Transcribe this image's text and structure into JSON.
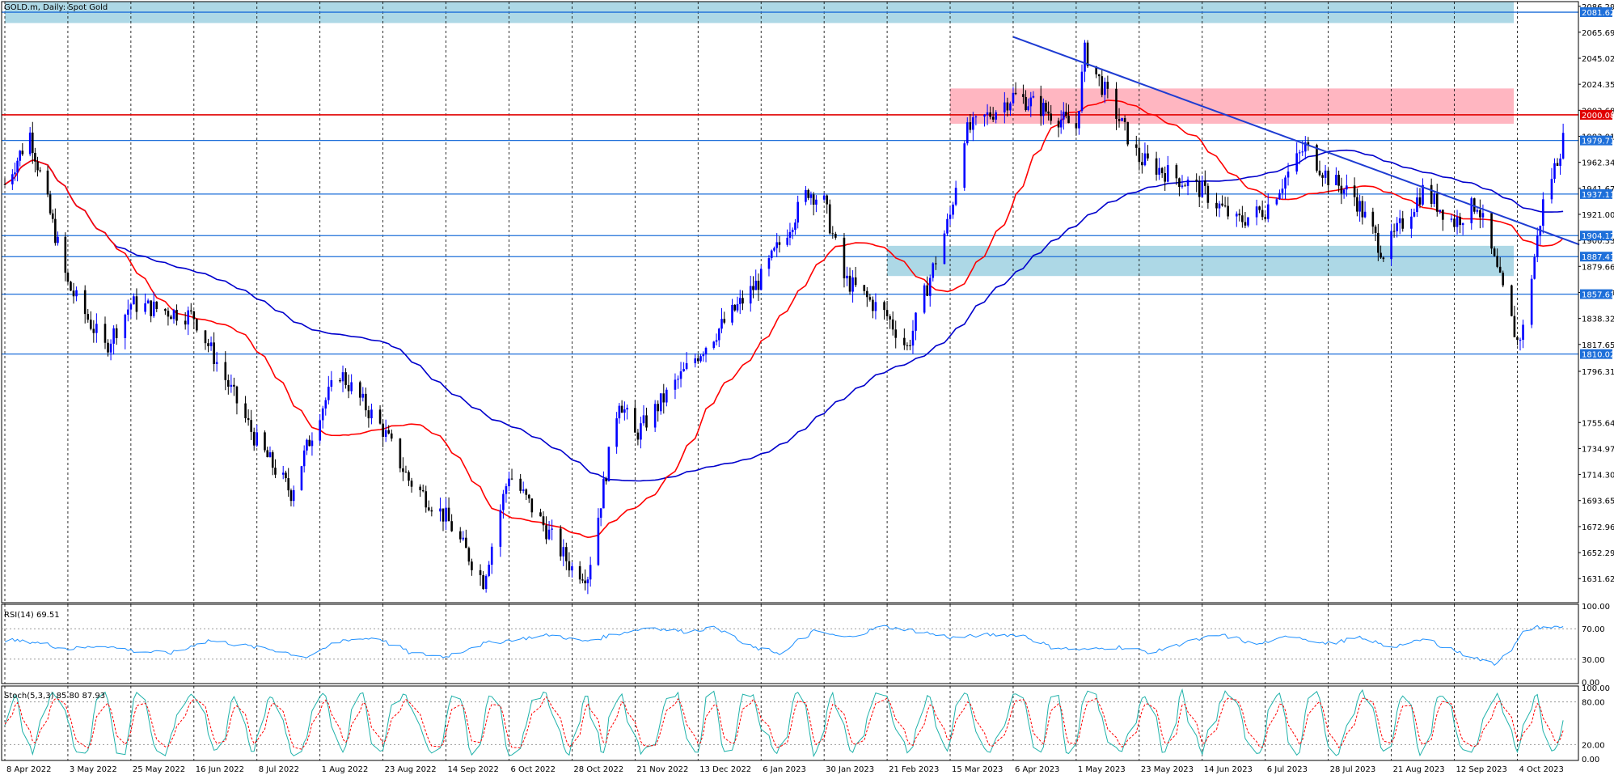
{
  "chart_data": {
    "type": "candlestick",
    "title": "GOLD.m, Daily:  Spot Gold",
    "colors": {
      "bull": "#0000ff",
      "bear": "#000000",
      "ma_fast": "#ff0000",
      "ma_slow": "#0000cc",
      "support_zone": "#add8e6",
      "resistance_zone": "#ffb6c1",
      "level_line": "#1e6fd9",
      "key_level": "#e00000",
      "trendline": "#1e3cd2",
      "rsi_line": "#1e90ff",
      "stoch_main": "#20b2aa",
      "stoch_signal": "#ff0000"
    },
    "price_axis": {
      "ylim": [
        1612.5,
        2090.0
      ],
      "ticks": [
        "2086.29",
        "2065.69",
        "2045.02",
        "2024.35",
        "2003.68",
        "1983.01",
        "1962.34",
        "1941.67",
        "1921.00",
        "1900.33",
        "1879.66",
        "1858.99",
        "1838.32",
        "1817.65",
        "1796.31",
        "1755.64",
        "1734.97",
        "1714.30",
        "1693.65",
        "1672.96",
        "1652.29",
        "1631.62"
      ]
    },
    "x_axis": {
      "labels": [
        "8 Apr 2022",
        "3 May 2022",
        "25 May 2022",
        "16 Jun 2022",
        "8 Jul 2022",
        "1 Aug 2022",
        "23 Aug 2022",
        "14 Sep 2022",
        "6 Oct 2022",
        "28 Oct 2022",
        "21 Nov 2022",
        "13 Dec 2022",
        "6 Jan 2023",
        "30 Jan 2023",
        "21 Feb 2023",
        "15 Mar 2023",
        "6 Apr 2023",
        "1 May 2023",
        "23 May 2023",
        "14 Jun 2023",
        "6 Jul 2023",
        "28 Jul 2023",
        "21 Aug 2023",
        "12 Sep 2023",
        "4 Oct 2023"
      ]
    },
    "series_anchors": [
      {
        "date": "8 Apr 2022",
        "close": 1945
      },
      {
        "date": "18 Apr 2022",
        "close": 1985
      },
      {
        "date": "3 May 2022",
        "close": 1865
      },
      {
        "date": "16 May 2022",
        "close": 1815
      },
      {
        "date": "25 May 2022",
        "close": 1850
      },
      {
        "date": "16 Jun 2022",
        "close": 1840
      },
      {
        "date": "8 Jul 2022",
        "close": 1740
      },
      {
        "date": "21 Jul 2022",
        "close": 1700
      },
      {
        "date": "1 Aug 2022",
        "close": 1765
      },
      {
        "date": "8 Aug 2022",
        "close": 1795
      },
      {
        "date": "23 Aug 2022",
        "close": 1750
      },
      {
        "date": "1 Sep 2022",
        "close": 1710
      },
      {
        "date": "14 Sep 2022",
        "close": 1680
      },
      {
        "date": "27 Sep 2022",
        "close": 1630
      },
      {
        "date": "6 Oct 2022",
        "close": 1715
      },
      {
        "date": "28 Oct 2022",
        "close": 1640
      },
      {
        "date": "3 Nov 2022",
        "close": 1635
      },
      {
        "date": "15 Nov 2022",
        "close": 1775
      },
      {
        "date": "21 Nov 2022",
        "close": 1745
      },
      {
        "date": "13 Dec 2022",
        "close": 1810
      },
      {
        "date": "6 Jan 2023",
        "close": 1870
      },
      {
        "date": "24 Jan 2023",
        "close": 1940
      },
      {
        "date": "30 Jan 2023",
        "close": 1930
      },
      {
        "date": "6 Feb 2023",
        "close": 1870
      },
      {
        "date": "21 Feb 2023",
        "close": 1840
      },
      {
        "date": "28 Feb 2023",
        "close": 1815
      },
      {
        "date": "15 Mar 2023",
        "close": 1920
      },
      {
        "date": "20 Mar 2023",
        "close": 1985
      },
      {
        "date": "6 Apr 2023",
        "close": 2015
      },
      {
        "date": "13 Apr 2023",
        "close": 2010
      },
      {
        "date": "1 May 2023",
        "close": 1990
      },
      {
        "date": "4 May 2023",
        "close": 2050
      },
      {
        "date": "23 May 2023",
        "close": 1965
      },
      {
        "date": "14 Jun 2023",
        "close": 1940
      },
      {
        "date": "26 Jun 2023",
        "close": 1915
      },
      {
        "date": "6 Jul 2023",
        "close": 1925
      },
      {
        "date": "20 Jul 2023",
        "close": 1975
      },
      {
        "date": "28 Jul 2023",
        "close": 1950
      },
      {
        "date": "7 Aug 2023",
        "close": 1935
      },
      {
        "date": "18 Aug 2023",
        "close": 1890
      },
      {
        "date": "21 Aug 2023",
        "close": 1900
      },
      {
        "date": "1 Sep 2023",
        "close": 1940
      },
      {
        "date": "12 Sep 2023",
        "close": 1915
      },
      {
        "date": "20 Sep 2023",
        "close": 1930
      },
      {
        "date": "4 Oct 2023",
        "close": 1820
      },
      {
        "date": "6 Oct 2023",
        "close": 1830
      },
      {
        "date": "13 Oct 2023",
        "close": 1930
      },
      {
        "date": "20 Oct 2023",
        "close": 1980
      }
    ],
    "levels": [
      {
        "label": "2081.62",
        "price": 2081.62,
        "style": "zone_top"
      },
      {
        "label": "2000.08",
        "price": 2000.08,
        "style": "key"
      },
      {
        "label": "1979.71",
        "price": 1979.71,
        "style": "line"
      },
      {
        "label": "1937.11",
        "price": 1937.11,
        "style": "line"
      },
      {
        "label": "1904.12",
        "price": 1904.12,
        "style": "line"
      },
      {
        "label": "1887.41",
        "price": 1887.41,
        "style": "line"
      },
      {
        "label": "1857.61",
        "price": 1857.61,
        "style": "line"
      },
      {
        "label": "1810.02",
        "price": 1810.02,
        "style": "line"
      }
    ],
    "zones": [
      {
        "name": "support",
        "from_date": "8 Apr 2022",
        "to_date": "beyond 4 Oct 2023",
        "price_low": 2073,
        "price_high": 2090
      },
      {
        "name": "resistance",
        "from_date": "15 Mar 2023",
        "to_date": "beyond 4 Oct 2023",
        "price_low": 1993,
        "price_high": 2021
      },
      {
        "name": "support",
        "from_date": "21 Feb 2023",
        "to_date": "beyond 4 Oct 2023",
        "price_low": 1872,
        "price_high": 1896
      }
    ],
    "trendline": {
      "from": {
        "date": "6 Apr 2023",
        "price": 2062
      },
      "to": {
        "date": "20 Oct 2023",
        "price": 1897
      }
    },
    "indicators": {
      "rsi": {
        "label": "RSI(14) 69.51",
        "levels": [
          "100.00",
          "70.00",
          "30.00",
          "0.00"
        ],
        "ylim": [
          0,
          100
        ],
        "anchors": [
          55,
          52,
          43,
          48,
          40,
          38,
          55,
          48,
          42,
          32,
          55,
          58,
          38,
          33,
          50,
          56,
          62,
          53,
          63,
          72,
          66,
          72,
          46,
          38,
          67,
          58,
          73,
          67,
          58,
          62,
          62,
          46,
          42,
          46,
          39,
          53,
          62,
          49,
          61,
          50,
          58,
          46,
          56,
          38,
          23,
          72,
          72
        ]
      },
      "stoch": {
        "label": "Stoch(5,3,3) 85.80 87.93",
        "levels": [
          "100.00",
          "80.00",
          "20.00",
          "0.00"
        ],
        "ylim": [
          0,
          100
        ],
        "cycles": 36
      }
    }
  }
}
